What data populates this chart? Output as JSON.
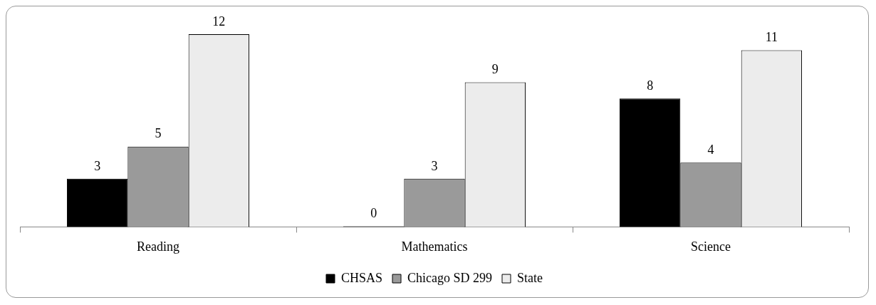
{
  "chart_data": {
    "type": "bar",
    "categories": [
      "Reading",
      "Mathematics",
      "Science"
    ],
    "series": [
      {
        "name": "CHSAS",
        "color": "#000000",
        "values": [
          3,
          0,
          8
        ]
      },
      {
        "name": "Chicago SD 299",
        "color": "#9a9a9a",
        "values": [
          5,
          3,
          4
        ]
      },
      {
        "name": "State",
        "color": "#ececec",
        "values": [
          12,
          9,
          11
        ]
      }
    ],
    "data_labels": true,
    "legend": "bottom",
    "grid": false
  }
}
